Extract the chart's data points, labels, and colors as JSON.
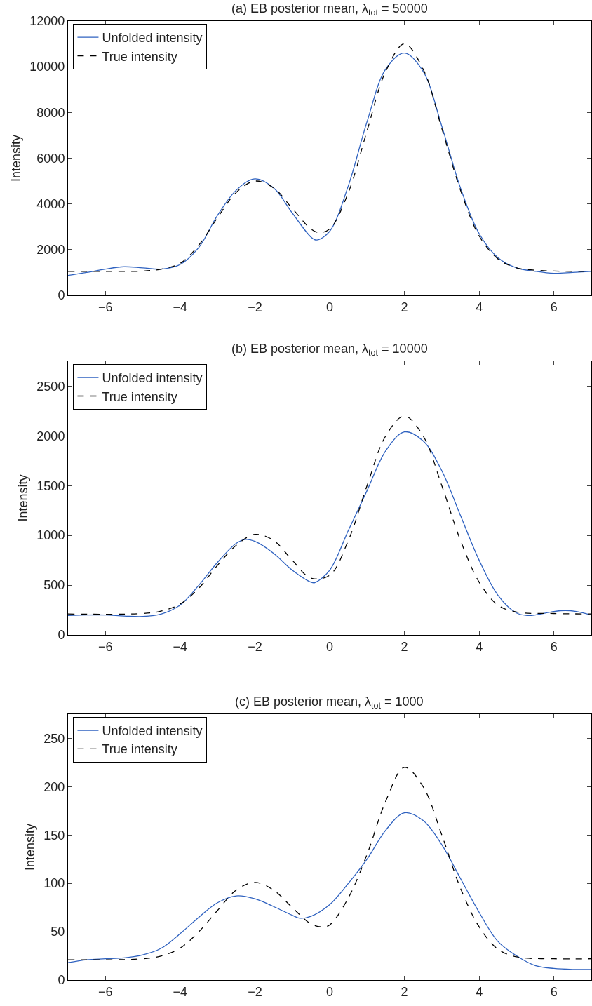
{
  "chart_data": [
    {
      "type": "line",
      "title": "(a) EB posterior mean, λ$_{tot}$ = 50000",
      "ylabel": "Intensity",
      "xlim": [
        -7,
        7
      ],
      "xticks": [
        -6,
        -4,
        -2,
        0,
        2,
        4,
        6
      ],
      "ylim": [
        0,
        12000
      ],
      "yticks": [
        0,
        2000,
        4000,
        6000,
        8000,
        10000,
        12000
      ],
      "legend": "top left",
      "series": [
        {
          "name": "Unfolded intensity",
          "color": "#2f62c0",
          "line_style": "solid",
          "x": [
            -7,
            -6.5,
            -6,
            -5.5,
            -5,
            -4.5,
            -4,
            -3.5,
            -3,
            -2.5,
            -2,
            -1.5,
            -1,
            -0.5,
            -0.35,
            0,
            0.5,
            1,
            1.5,
            2,
            2.5,
            3,
            3.5,
            4,
            4.5,
            5,
            5.5,
            6,
            6.5,
            7
          ],
          "values": [
            870,
            1000,
            1150,
            1250,
            1200,
            1150,
            1350,
            2100,
            3500,
            4600,
            5100,
            4700,
            3600,
            2550,
            2420,
            2800,
            4800,
            7600,
            9900,
            10600,
            9800,
            7400,
            4700,
            2700,
            1650,
            1200,
            1050,
            960,
            1000,
            1050
          ]
        },
        {
          "name": "True intensity",
          "color": "#000000",
          "line_style": "dashed",
          "x": [
            -7,
            -6,
            -5,
            -4.5,
            -4,
            -3.5,
            -3,
            -2.5,
            -2,
            -1.5,
            -1,
            -0.5,
            -0.3,
            0,
            0.5,
            1,
            1.5,
            2,
            2.5,
            3,
            3.5,
            4,
            4.5,
            5,
            5.5,
            6,
            7
          ],
          "values": [
            1050,
            1050,
            1060,
            1150,
            1400,
            2200,
            3400,
            4500,
            5000,
            4700,
            3800,
            2900,
            2750,
            2900,
            4500,
            7200,
            9800,
            11000,
            9900,
            7300,
            4600,
            2600,
            1600,
            1200,
            1100,
            1060,
            1050
          ]
        }
      ]
    },
    {
      "type": "line",
      "title": "(b) EB posterior mean, λ$_{tot}$ = 10000",
      "ylabel": "Intensity",
      "xlim": [
        -7,
        7
      ],
      "xticks": [
        -6,
        -4,
        -2,
        0,
        2,
        4,
        6
      ],
      "ylim": [
        0,
        2750
      ],
      "yticks": [
        0,
        500,
        1000,
        1500,
        2000,
        2500
      ],
      "legend": "top left",
      "series": [
        {
          "name": "Unfolded intensity",
          "color": "#2f62c0",
          "line_style": "solid",
          "x": [
            -7,
            -6.5,
            -6,
            -5.5,
            -5,
            -4.5,
            -4,
            -3.5,
            -3,
            -2.5,
            -2.25,
            -2,
            -1.5,
            -1,
            -0.5,
            -0.4,
            0,
            0.5,
            1,
            1.5,
            2,
            2.5,
            3,
            3.5,
            4,
            4.5,
            5,
            5.3,
            5.5,
            6,
            6.3,
            6.6,
            7
          ],
          "values": [
            195,
            200,
            200,
            190,
            185,
            210,
            300,
            500,
            730,
            920,
            960,
            940,
            820,
            650,
            530,
            525,
            650,
            1050,
            1450,
            1850,
            2040,
            1950,
            1650,
            1200,
            750,
            400,
            220,
            195,
            200,
            235,
            245,
            235,
            200
          ]
        },
        {
          "name": "True intensity",
          "color": "#000000",
          "line_style": "dashed",
          "x": [
            -7,
            -5,
            -4.5,
            -4,
            -3.5,
            -3,
            -2.5,
            -2,
            -1.5,
            -1,
            -0.5,
            0,
            0.5,
            1,
            1.5,
            2,
            2.5,
            3,
            3.5,
            4,
            4.5,
            5,
            6,
            7
          ],
          "values": [
            210,
            215,
            240,
            310,
            470,
            700,
            900,
            1010,
            950,
            750,
            570,
            600,
            950,
            1500,
            2000,
            2200,
            2000,
            1500,
            950,
            530,
            300,
            230,
            215,
            210
          ]
        }
      ]
    },
    {
      "type": "line",
      "title": "(c) EB posterior mean, λ$_{tot}$ = 1000",
      "ylabel": "Intensity",
      "xlim": [
        -7,
        7
      ],
      "xticks": [
        -6,
        -4,
        -2,
        0,
        2,
        4,
        6
      ],
      "ylim": [
        0,
        275
      ],
      "yticks": [
        0,
        50,
        100,
        150,
        200,
        250
      ],
      "legend": "top left",
      "series": [
        {
          "name": "Unfolded intensity",
          "color": "#2f62c0",
          "line_style": "solid",
          "x": [
            -7,
            -6.5,
            -6,
            -5.5,
            -5,
            -4.5,
            -4,
            -3.5,
            -3,
            -2.5,
            -2,
            -1.5,
            -1,
            -0.8,
            -0.5,
            0,
            0.5,
            1,
            1.5,
            2,
            2.5,
            3,
            3.5,
            4,
            4.5,
            5,
            5.5,
            6,
            6.5,
            7
          ],
          "values": [
            18,
            21,
            22,
            23,
            26,
            33,
            48,
            65,
            80,
            87,
            84,
            76,
            67,
            64,
            66,
            78,
            100,
            125,
            155,
            173,
            165,
            140,
            105,
            70,
            40,
            25,
            15,
            12,
            11,
            11
          ]
        },
        {
          "name": "True intensity",
          "color": "#000000",
          "line_style": "dashed",
          "x": [
            -7,
            -5,
            -4.5,
            -4,
            -3.5,
            -3,
            -2.5,
            -2,
            -1.5,
            -1,
            -0.5,
            -0.2,
            0,
            0.5,
            1,
            1.5,
            2,
            2.5,
            3,
            3.5,
            4,
            4.5,
            5,
            6,
            7
          ],
          "values": [
            21,
            22,
            25,
            33,
            50,
            72,
            93,
            101,
            93,
            75,
            58,
            55,
            57,
            85,
            130,
            185,
            220,
            200,
            150,
            95,
            55,
            32,
            24,
            22,
            22
          ]
        }
      ]
    }
  ]
}
